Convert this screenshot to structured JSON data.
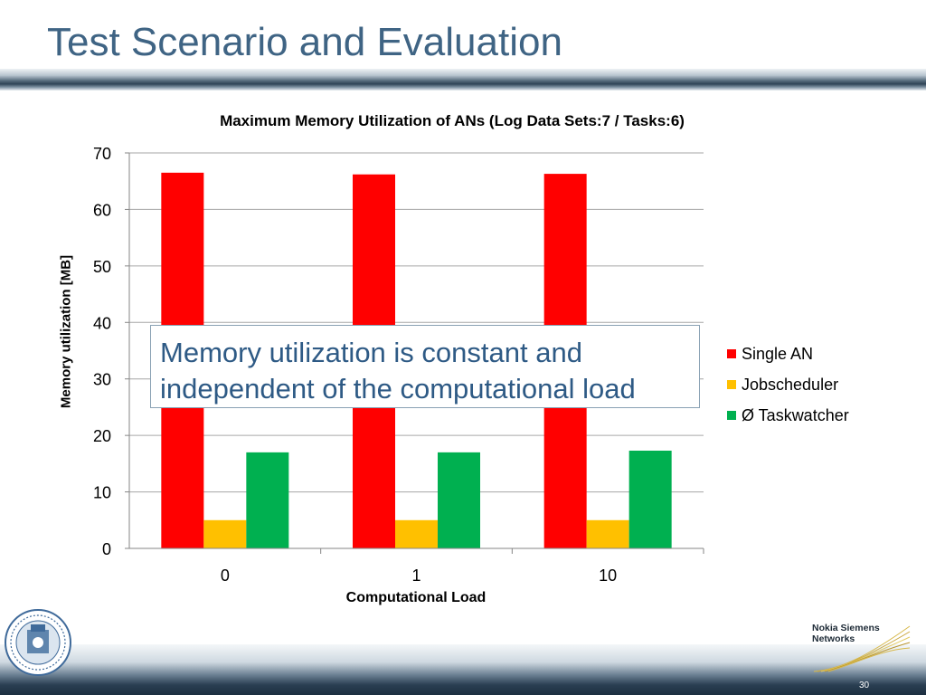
{
  "slide": {
    "title": "Test Scenario and Evaluation",
    "callout": "Memory utilization is constant and independent of the computational load",
    "page_number": "30",
    "logo_text": [
      "Nokia Siemens",
      "Networks"
    ]
  },
  "chart_data": {
    "type": "bar",
    "title": "Maximum Memory Utilization of ANs (Log Data Sets:7 / Tasks:6)",
    "xlabel": "Computational Load",
    "ylabel": "Memory utilization [MB]",
    "categories": [
      "0",
      "1",
      "10"
    ],
    "ylim": [
      0,
      70
    ],
    "yticks": [
      0,
      10,
      20,
      30,
      40,
      50,
      60,
      70
    ],
    "grid": true,
    "legend_position": "right",
    "series": [
      {
        "name": "Single AN",
        "color": "#ff0000",
        "values": [
          66.5,
          66.2,
          66.3
        ]
      },
      {
        "name": "Jobscheduler",
        "color": "#ffc000",
        "values": [
          5,
          5,
          5
        ]
      },
      {
        "name": "Ø Taskwatcher",
        "color": "#00b050",
        "values": [
          17,
          17,
          17.3
        ]
      }
    ]
  }
}
